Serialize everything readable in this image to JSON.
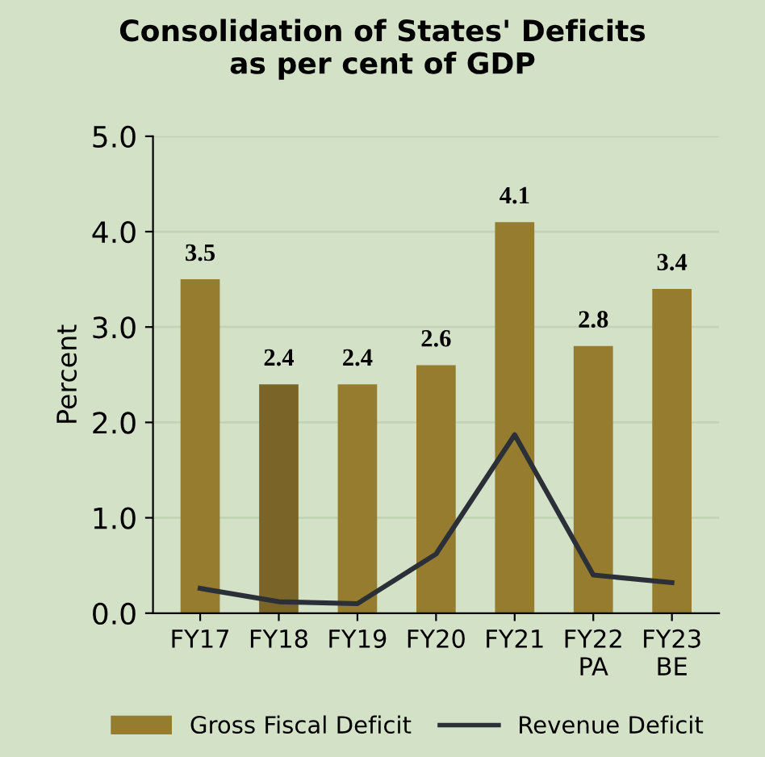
{
  "chart_data": {
    "type": "bar",
    "title": "Consolidation of States' Deficits\nas per cent of GDP",
    "ylabel": "Percent",
    "categories": [
      "FY17",
      "FY18",
      "FY19",
      "FY20",
      "FY21",
      "FY22\nPA",
      "FY23\nBE"
    ],
    "series": [
      {
        "name": "Gross Fiscal Deficit",
        "colors": [
          "#957c2f",
          "#7a6428",
          "#957c2f",
          "#957c2f",
          "#957c2f",
          "#957c2f",
          "#957c2f"
        ],
        "color": "#957c2f",
        "values": [
          3.5,
          2.4,
          2.4,
          2.6,
          4.1,
          2.8,
          3.4
        ],
        "data_labels": true
      },
      {
        "name": "Revenue Deficit",
        "type": "line",
        "color": "#2b2f38",
        "values": [
          0.26,
          0.12,
          0.1,
          0.62,
          1.87,
          0.4,
          0.32
        ],
        "marker": "none"
      }
    ],
    "ylim": [
      0,
      5
    ],
    "yticks": [
      {
        "value": 0,
        "label": "0.0"
      },
      {
        "value": 1,
        "label": "1.0"
      },
      {
        "value": 2,
        "label": "2.0"
      },
      {
        "value": 3,
        "label": "3.0"
      },
      {
        "value": 4,
        "label": "4.0"
      },
      {
        "value": 5,
        "label": "5.0"
      }
    ],
    "grid": "y",
    "legend": "bottom"
  }
}
